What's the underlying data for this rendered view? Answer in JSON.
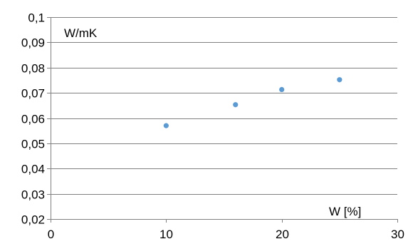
{
  "chart_data": {
    "type": "scatter",
    "title": "",
    "xlabel": "W [%]",
    "ylabel": "W/mK",
    "xlim": [
      0,
      30
    ],
    "ylim": [
      0.02,
      0.1
    ],
    "xticks": [
      0,
      10,
      20,
      30
    ],
    "xtick_labels": [
      "0",
      "10",
      "20",
      "30"
    ],
    "yticks": [
      0.02,
      0.03,
      0.04,
      0.05,
      0.06,
      0.07,
      0.08,
      0.09,
      0.1
    ],
    "ytick_labels": [
      "0,02",
      "0,03",
      "0,04",
      "0,05",
      "0,06",
      "0,07",
      "0,08",
      "0,09",
      "0,1"
    ],
    "grid": "horizontal",
    "legend": "none",
    "series": [
      {
        "color": "#5b9bd5",
        "points": [
          {
            "x": 10,
            "y": 0.057
          },
          {
            "x": 16,
            "y": 0.0653
          },
          {
            "x": 20,
            "y": 0.0713
          },
          {
            "x": 25,
            "y": 0.0752
          }
        ]
      }
    ],
    "colors": {
      "grid": "#808080",
      "axis": "#808080",
      "marker": "#5b9bd5"
    }
  }
}
